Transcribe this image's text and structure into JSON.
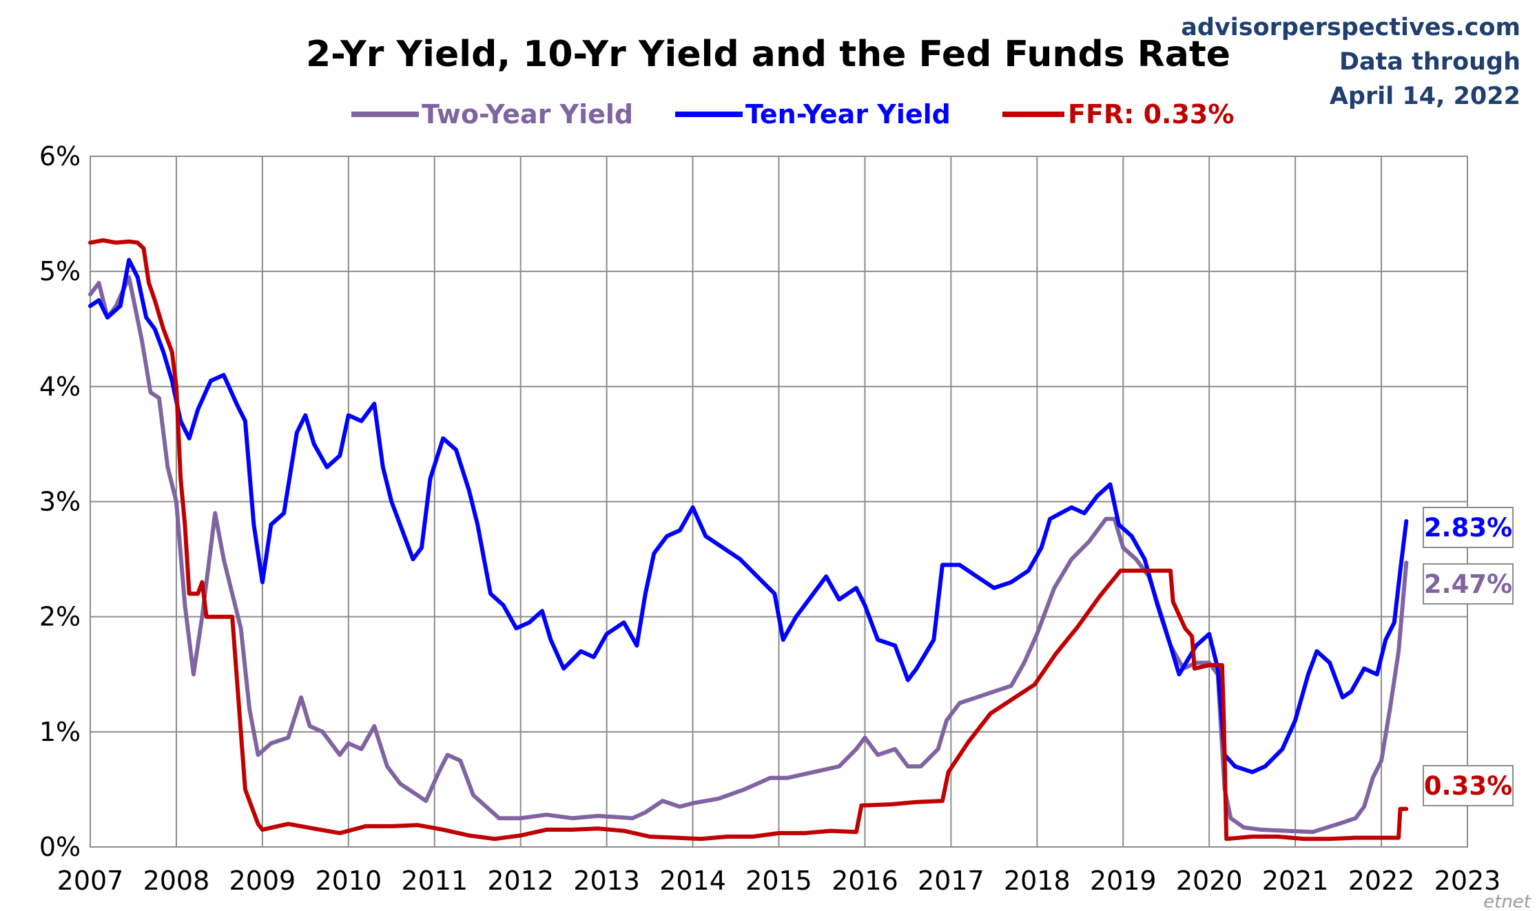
{
  "chart_data": {
    "type": "line",
    "title": "2-Yr Yield, 10-Yr Yield and the Fed Funds Rate",
    "source": "advisorperspectives.com",
    "note_line1": "Data through",
    "note_line2": "April 14, 2022",
    "watermark": "etnet",
    "ylim": [
      0,
      6
    ],
    "xlim": [
      2007,
      2023
    ],
    "y_ticks": [
      0,
      1,
      2,
      3,
      4,
      5,
      6
    ],
    "y_tick_labels": [
      "0%",
      "1%",
      "2%",
      "3%",
      "4%",
      "5%",
      "6%"
    ],
    "x_ticks": [
      2007,
      2008,
      2009,
      2010,
      2011,
      2012,
      2013,
      2014,
      2015,
      2016,
      2017,
      2018,
      2019,
      2020,
      2021,
      2022,
      2023
    ],
    "x_tick_labels": [
      "2007",
      "2008",
      "2009",
      "2010",
      "2011",
      "2012",
      "2013",
      "2014",
      "2015",
      "2016",
      "2017",
      "2018",
      "2019",
      "2020",
      "2021",
      "2022",
      "2023"
    ],
    "grid": true,
    "legend_position": "top",
    "series": [
      {
        "name": "Two-Year Yield",
        "color": "#8064a2",
        "end_label": "2.47%",
        "end_value": 2.47,
        "points": [
          [
            2007.0,
            4.8
          ],
          [
            2007.1,
            4.9
          ],
          [
            2007.2,
            4.6
          ],
          [
            2007.3,
            4.7
          ],
          [
            2007.45,
            4.95
          ],
          [
            2007.6,
            4.4
          ],
          [
            2007.7,
            3.95
          ],
          [
            2007.8,
            3.9
          ],
          [
            2007.9,
            3.3
          ],
          [
            2008.0,
            3.0
          ],
          [
            2008.1,
            2.1
          ],
          [
            2008.2,
            1.5
          ],
          [
            2008.3,
            2.0
          ],
          [
            2008.45,
            2.9
          ],
          [
            2008.55,
            2.5
          ],
          [
            2008.65,
            2.2
          ],
          [
            2008.75,
            1.9
          ],
          [
            2008.85,
            1.2
          ],
          [
            2008.95,
            0.8
          ],
          [
            2009.1,
            0.9
          ],
          [
            2009.3,
            0.95
          ],
          [
            2009.45,
            1.3
          ],
          [
            2009.55,
            1.05
          ],
          [
            2009.7,
            1.0
          ],
          [
            2009.9,
            0.8
          ],
          [
            2010.0,
            0.9
          ],
          [
            2010.15,
            0.85
          ],
          [
            2010.3,
            1.05
          ],
          [
            2010.45,
            0.7
          ],
          [
            2010.6,
            0.55
          ],
          [
            2010.8,
            0.45
          ],
          [
            2010.9,
            0.4
          ],
          [
            2011.05,
            0.65
          ],
          [
            2011.15,
            0.8
          ],
          [
            2011.3,
            0.75
          ],
          [
            2011.45,
            0.45
          ],
          [
            2011.6,
            0.35
          ],
          [
            2011.75,
            0.25
          ],
          [
            2012.0,
            0.25
          ],
          [
            2012.3,
            0.28
          ],
          [
            2012.6,
            0.25
          ],
          [
            2012.9,
            0.27
          ],
          [
            2013.3,
            0.25
          ],
          [
            2013.45,
            0.3
          ],
          [
            2013.65,
            0.4
          ],
          [
            2013.85,
            0.35
          ],
          [
            2014.0,
            0.38
          ],
          [
            2014.3,
            0.42
          ],
          [
            2014.6,
            0.5
          ],
          [
            2014.9,
            0.6
          ],
          [
            2015.1,
            0.6
          ],
          [
            2015.4,
            0.65
          ],
          [
            2015.7,
            0.7
          ],
          [
            2015.9,
            0.85
          ],
          [
            2016.0,
            0.95
          ],
          [
            2016.15,
            0.8
          ],
          [
            2016.35,
            0.85
          ],
          [
            2016.5,
            0.7
          ],
          [
            2016.65,
            0.7
          ],
          [
            2016.85,
            0.85
          ],
          [
            2016.95,
            1.1
          ],
          [
            2017.1,
            1.25
          ],
          [
            2017.3,
            1.3
          ],
          [
            2017.5,
            1.35
          ],
          [
            2017.7,
            1.4
          ],
          [
            2017.85,
            1.6
          ],
          [
            2018.0,
            1.85
          ],
          [
            2018.2,
            2.25
          ],
          [
            2018.4,
            2.5
          ],
          [
            2018.6,
            2.65
          ],
          [
            2018.8,
            2.85
          ],
          [
            2018.9,
            2.85
          ],
          [
            2019.0,
            2.6
          ],
          [
            2019.15,
            2.5
          ],
          [
            2019.3,
            2.35
          ],
          [
            2019.45,
            2.0
          ],
          [
            2019.55,
            1.75
          ],
          [
            2019.7,
            1.55
          ],
          [
            2019.85,
            1.6
          ],
          [
            2020.0,
            1.6
          ],
          [
            2020.1,
            1.5
          ],
          [
            2020.18,
            0.5
          ],
          [
            2020.25,
            0.25
          ],
          [
            2020.4,
            0.17
          ],
          [
            2020.6,
            0.15
          ],
          [
            2020.9,
            0.14
          ],
          [
            2021.2,
            0.13
          ],
          [
            2021.5,
            0.2
          ],
          [
            2021.7,
            0.25
          ],
          [
            2021.8,
            0.35
          ],
          [
            2021.9,
            0.6
          ],
          [
            2022.0,
            0.75
          ],
          [
            2022.1,
            1.2
          ],
          [
            2022.2,
            1.7
          ],
          [
            2022.29,
            2.47
          ]
        ]
      },
      {
        "name": "Ten-Year Yield",
        "color": "#0000ff",
        "end_label": "2.83%",
        "end_value": 2.83,
        "points": [
          [
            2007.0,
            4.7
          ],
          [
            2007.1,
            4.75
          ],
          [
            2007.2,
            4.6
          ],
          [
            2007.35,
            4.7
          ],
          [
            2007.45,
            5.1
          ],
          [
            2007.55,
            4.95
          ],
          [
            2007.65,
            4.6
          ],
          [
            2007.75,
            4.5
          ],
          [
            2007.85,
            4.3
          ],
          [
            2007.95,
            4.05
          ],
          [
            2008.05,
            3.7
          ],
          [
            2008.15,
            3.55
          ],
          [
            2008.25,
            3.8
          ],
          [
            2008.4,
            4.05
          ],
          [
            2008.55,
            4.1
          ],
          [
            2008.7,
            3.85
          ],
          [
            2008.8,
            3.7
          ],
          [
            2008.9,
            2.8
          ],
          [
            2009.0,
            2.3
          ],
          [
            2009.1,
            2.8
          ],
          [
            2009.25,
            2.9
          ],
          [
            2009.4,
            3.6
          ],
          [
            2009.5,
            3.75
          ],
          [
            2009.6,
            3.5
          ],
          [
            2009.75,
            3.3
          ],
          [
            2009.9,
            3.4
          ],
          [
            2010.0,
            3.75
          ],
          [
            2010.15,
            3.7
          ],
          [
            2010.3,
            3.85
          ],
          [
            2010.4,
            3.3
          ],
          [
            2010.5,
            3.0
          ],
          [
            2010.6,
            2.8
          ],
          [
            2010.75,
            2.5
          ],
          [
            2010.85,
            2.6
          ],
          [
            2010.95,
            3.2
          ],
          [
            2011.1,
            3.55
          ],
          [
            2011.25,
            3.45
          ],
          [
            2011.4,
            3.1
          ],
          [
            2011.5,
            2.8
          ],
          [
            2011.65,
            2.2
          ],
          [
            2011.8,
            2.1
          ],
          [
            2011.95,
            1.9
          ],
          [
            2012.1,
            1.95
          ],
          [
            2012.25,
            2.05
          ],
          [
            2012.35,
            1.8
          ],
          [
            2012.5,
            1.55
          ],
          [
            2012.7,
            1.7
          ],
          [
            2012.85,
            1.65
          ],
          [
            2013.0,
            1.85
          ],
          [
            2013.2,
            1.95
          ],
          [
            2013.35,
            1.75
          ],
          [
            2013.45,
            2.2
          ],
          [
            2013.55,
            2.55
          ],
          [
            2013.7,
            2.7
          ],
          [
            2013.85,
            2.75
          ],
          [
            2014.0,
            2.95
          ],
          [
            2014.15,
            2.7
          ],
          [
            2014.35,
            2.6
          ],
          [
            2014.55,
            2.5
          ],
          [
            2014.75,
            2.35
          ],
          [
            2014.95,
            2.2
          ],
          [
            2015.05,
            1.8
          ],
          [
            2015.2,
            2.0
          ],
          [
            2015.4,
            2.2
          ],
          [
            2015.55,
            2.35
          ],
          [
            2015.7,
            2.15
          ],
          [
            2015.9,
            2.25
          ],
          [
            2016.0,
            2.1
          ],
          [
            2016.15,
            1.8
          ],
          [
            2016.35,
            1.75
          ],
          [
            2016.5,
            1.45
          ],
          [
            2016.6,
            1.55
          ],
          [
            2016.8,
            1.8
          ],
          [
            2016.9,
            2.45
          ],
          [
            2017.1,
            2.45
          ],
          [
            2017.3,
            2.35
          ],
          [
            2017.5,
            2.25
          ],
          [
            2017.7,
            2.3
          ],
          [
            2017.9,
            2.4
          ],
          [
            2018.05,
            2.6
          ],
          [
            2018.15,
            2.85
          ],
          [
            2018.4,
            2.95
          ],
          [
            2018.55,
            2.9
          ],
          [
            2018.7,
            3.05
          ],
          [
            2018.85,
            3.15
          ],
          [
            2018.95,
            2.8
          ],
          [
            2019.1,
            2.7
          ],
          [
            2019.25,
            2.5
          ],
          [
            2019.4,
            2.1
          ],
          [
            2019.55,
            1.75
          ],
          [
            2019.65,
            1.5
          ],
          [
            2019.85,
            1.75
          ],
          [
            2020.0,
            1.85
          ],
          [
            2020.1,
            1.55
          ],
          [
            2020.18,
            0.8
          ],
          [
            2020.3,
            0.7
          ],
          [
            2020.5,
            0.65
          ],
          [
            2020.65,
            0.7
          ],
          [
            2020.85,
            0.85
          ],
          [
            2021.0,
            1.1
          ],
          [
            2021.15,
            1.5
          ],
          [
            2021.25,
            1.7
          ],
          [
            2021.4,
            1.6
          ],
          [
            2021.55,
            1.3
          ],
          [
            2021.65,
            1.35
          ],
          [
            2021.8,
            1.55
          ],
          [
            2021.95,
            1.5
          ],
          [
            2022.05,
            1.8
          ],
          [
            2022.15,
            1.95
          ],
          [
            2022.22,
            2.4
          ],
          [
            2022.29,
            2.83
          ]
        ]
      },
      {
        "name": "FFR: 0.33%",
        "color": "#c00000",
        "end_label": "0.33%",
        "end_value": 0.33,
        "points": [
          [
            2007.0,
            5.25
          ],
          [
            2007.15,
            5.27
          ],
          [
            2007.3,
            5.25
          ],
          [
            2007.45,
            5.26
          ],
          [
            2007.55,
            5.25
          ],
          [
            2007.62,
            5.2
          ],
          [
            2007.68,
            4.9
          ],
          [
            2007.75,
            4.75
          ],
          [
            2007.85,
            4.5
          ],
          [
            2007.95,
            4.3
          ],
          [
            2008.0,
            4.0
          ],
          [
            2008.05,
            3.2
          ],
          [
            2008.1,
            2.8
          ],
          [
            2008.15,
            2.2
          ],
          [
            2008.25,
            2.2
          ],
          [
            2008.3,
            2.3
          ],
          [
            2008.35,
            2.0
          ],
          [
            2008.45,
            2.0
          ],
          [
            2008.55,
            2.0
          ],
          [
            2008.65,
            2.0
          ],
          [
            2008.7,
            1.5
          ],
          [
            2008.75,
            1.0
          ],
          [
            2008.8,
            0.5
          ],
          [
            2008.85,
            0.4
          ],
          [
            2008.95,
            0.2
          ],
          [
            2009.0,
            0.15
          ],
          [
            2009.3,
            0.2
          ],
          [
            2009.6,
            0.16
          ],
          [
            2009.9,
            0.12
          ],
          [
            2010.2,
            0.18
          ],
          [
            2010.5,
            0.18
          ],
          [
            2010.8,
            0.19
          ],
          [
            2011.1,
            0.15
          ],
          [
            2011.4,
            0.1
          ],
          [
            2011.7,
            0.07
          ],
          [
            2012.0,
            0.1
          ],
          [
            2012.3,
            0.15
          ],
          [
            2012.6,
            0.15
          ],
          [
            2012.9,
            0.16
          ],
          [
            2013.2,
            0.14
          ],
          [
            2013.5,
            0.09
          ],
          [
            2013.8,
            0.08
          ],
          [
            2014.1,
            0.07
          ],
          [
            2014.4,
            0.09
          ],
          [
            2014.7,
            0.09
          ],
          [
            2015.0,
            0.12
          ],
          [
            2015.3,
            0.12
          ],
          [
            2015.6,
            0.14
          ],
          [
            2015.9,
            0.13
          ],
          [
            2015.96,
            0.36
          ],
          [
            2016.3,
            0.37
          ],
          [
            2016.6,
            0.39
          ],
          [
            2016.9,
            0.4
          ],
          [
            2016.97,
            0.65
          ],
          [
            2017.2,
            0.91
          ],
          [
            2017.46,
            1.16
          ],
          [
            2017.97,
            1.41
          ],
          [
            2018.22,
            1.68
          ],
          [
            2018.47,
            1.91
          ],
          [
            2018.73,
            2.18
          ],
          [
            2018.97,
            2.4
          ],
          [
            2019.3,
            2.4
          ],
          [
            2019.55,
            2.4
          ],
          [
            2019.58,
            2.13
          ],
          [
            2019.72,
            1.9
          ],
          [
            2019.8,
            1.83
          ],
          [
            2019.83,
            1.55
          ],
          [
            2020.0,
            1.58
          ],
          [
            2020.15,
            1.58
          ],
          [
            2020.17,
            1.1
          ],
          [
            2020.2,
            0.07
          ],
          [
            2020.5,
            0.09
          ],
          [
            2020.8,
            0.09
          ],
          [
            2021.1,
            0.07
          ],
          [
            2021.4,
            0.07
          ],
          [
            2021.7,
            0.08
          ],
          [
            2022.0,
            0.08
          ],
          [
            2022.2,
            0.08
          ],
          [
            2022.22,
            0.33
          ],
          [
            2022.29,
            0.33
          ]
        ]
      }
    ]
  }
}
